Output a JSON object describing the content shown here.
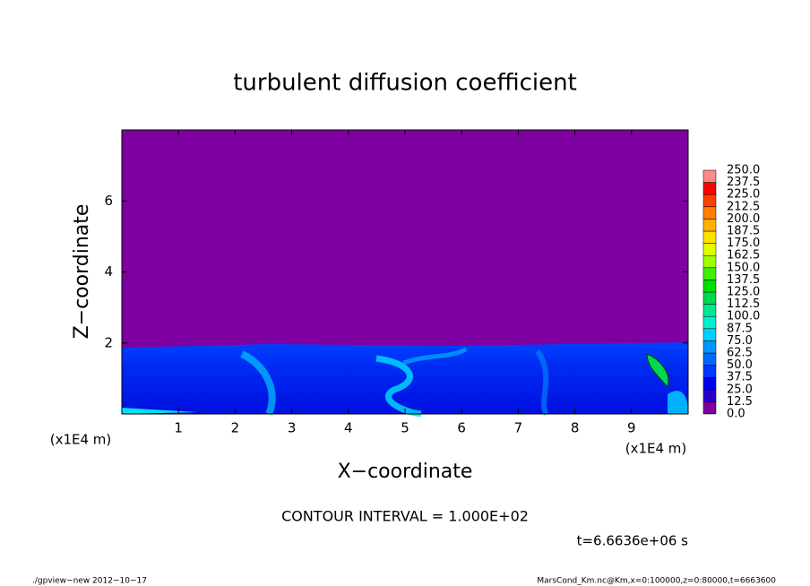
{
  "chart_data": {
    "type": "contour",
    "title": "turbulent diffusion coefficient",
    "xlabel": "X−coordinate",
    "ylabel": "Z−coordinate",
    "x_unit": "(x1E4 m)",
    "xlim": [
      0,
      10
    ],
    "xticks": [
      1,
      2,
      3,
      4,
      5,
      6,
      7,
      8,
      9
    ],
    "ylim": [
      0,
      8
    ],
    "yticks": [
      2,
      4,
      6
    ],
    "annotation": "CONTOUR INTERVAL = 1.000E+02",
    "time": "t=6.6636e+06 s",
    "footer_left": "./gpview−new  2012−10−17",
    "footer_right": "MarsCond_Km.nc@Km,x=0:100000,z=0:80000,t=6663600",
    "colorbar": {
      "levels": [
        {
          "value": 0,
          "label": "0.0"
        },
        {
          "value": 12.5,
          "label": "12.5"
        },
        {
          "value": 25,
          "label": "25.0"
        },
        {
          "value": 37.5,
          "label": "37.5"
        },
        {
          "value": 50,
          "label": "50.0"
        },
        {
          "value": 62.5,
          "label": "62.5"
        },
        {
          "value": 75,
          "label": "75.0"
        },
        {
          "value": 87.5,
          "label": "87.5"
        },
        {
          "value": 100,
          "label": "100.0"
        },
        {
          "value": 112.5,
          "label": "112.5"
        },
        {
          "value": 125,
          "label": "125.0"
        },
        {
          "value": 137.5,
          "label": "137.5"
        },
        {
          "value": 150,
          "label": "150.0"
        },
        {
          "value": 162.5,
          "label": "162.5"
        },
        {
          "value": 175,
          "label": "175.0"
        },
        {
          "value": 187.5,
          "label": "187.5"
        },
        {
          "value": 200,
          "label": "200.0"
        },
        {
          "value": 212.5,
          "label": "212.5"
        },
        {
          "value": 225,
          "label": "225.0"
        },
        {
          "value": 237.5,
          "label": "237.5"
        },
        {
          "value": 250,
          "label": "250.0"
        }
      ],
      "colors": [
        "#7e00a0",
        "#2800c8",
        "#0000f0",
        "#0038ff",
        "#0068ff",
        "#0098ff",
        "#00d0ff",
        "#00f0d0",
        "#00e890",
        "#00d850",
        "#00e000",
        "#40f000",
        "#a0ff00",
        "#e0ff00",
        "#ffe000",
        "#ffb000",
        "#ff8000",
        "#ff4000",
        "#ff0000",
        "#ff8888"
      ]
    }
  }
}
